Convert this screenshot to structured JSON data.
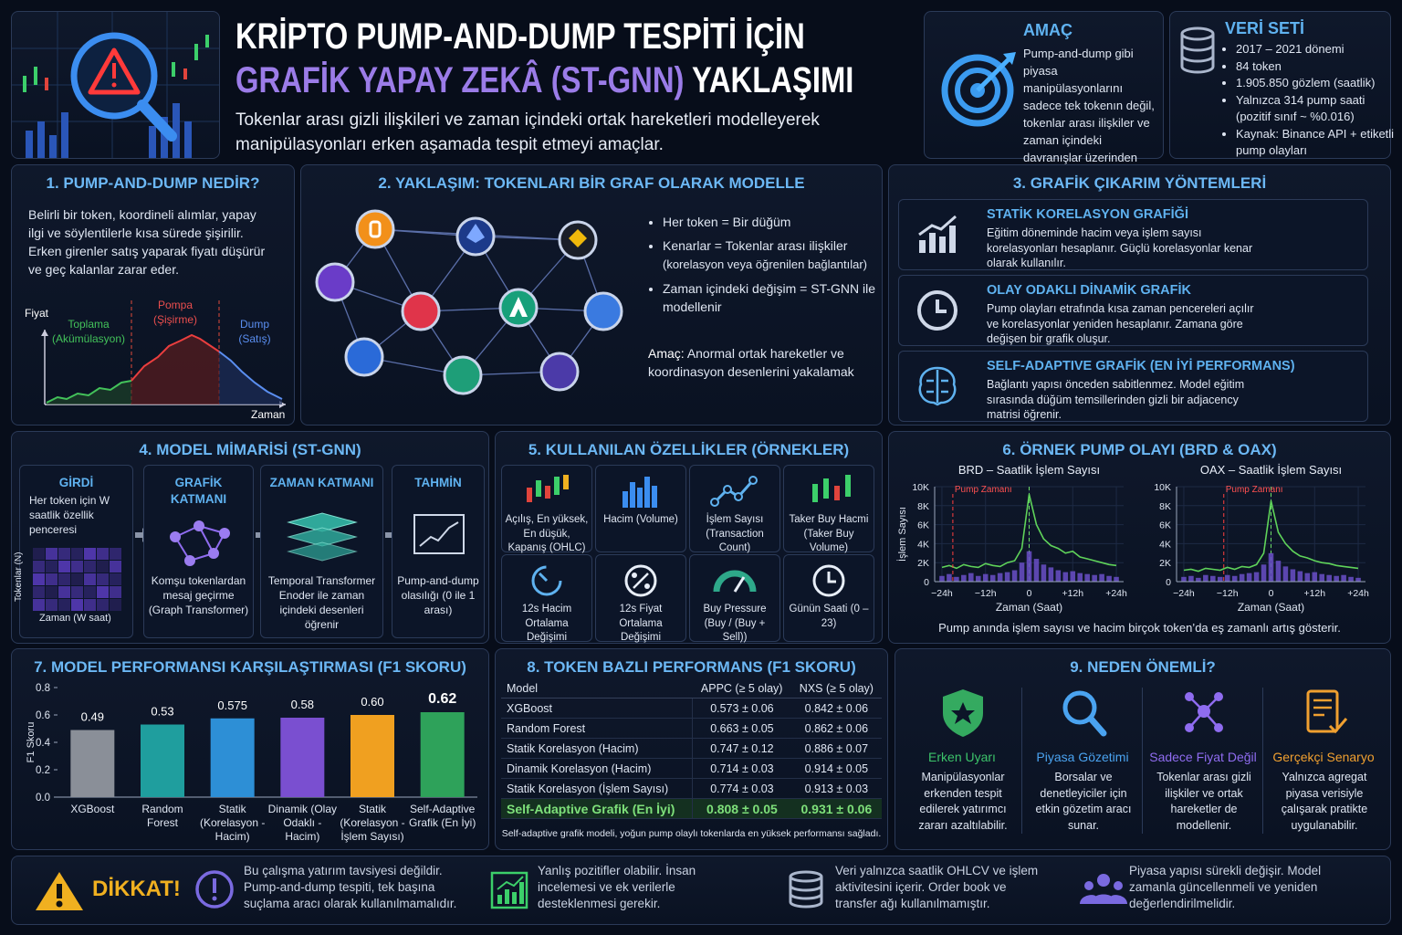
{
  "header": {
    "title_line1": "KRİPTO PUMP-AND-DUMP TESPİTİ İÇİN",
    "title_highlight": "GRAFİK YAPAY ZEKÂ (ST-GNN)",
    "title_rest": "YAKLAŞIMI",
    "subtitle": "Tokenlar arası gizli ilişkileri ve zaman içindeki ortak hareketleri modelleyerek manipülasyonları erken aşamada tespit etmeyi amaçlar."
  },
  "purpose": {
    "title": "AMAÇ",
    "text": "Pump-and-dump gibi piyasa manipülasyonlarını sadece tek tokenın değil, tokenlar arası ilişkiler ve zaman içindeki davranışlar üzerinden tespit etmek."
  },
  "dataset": {
    "title": "VERİ SETİ",
    "items": [
      "2017 – 2021 dönemi",
      "84 token",
      "1.905.850 gözlem (saatlik)",
      "Yalnızca 314 pump saati (pozitif sınıf ~ %0.016)",
      "Kaynak: Binance API + etiketli pump olayları"
    ]
  },
  "section1": {
    "title": "1. PUMP-AND-DUMP NEDİR?",
    "text": "Belirli bir token, koordineli alımlar, yapay ilgi ve söylentilerle kısa sürede şişirilir. Erken girenler satış yaparak fiyatı düşürür ve geç kalanlar zarar eder.",
    "y_label": "Fiyat",
    "x_label": "Zaman",
    "phases": [
      {
        "name": "Toplama",
        "sub": "(Akümülasyon)"
      },
      {
        "name": "Pompa",
        "sub": "(Şişirme)"
      },
      {
        "name": "Dump",
        "sub": "(Satış)"
      }
    ]
  },
  "section2": {
    "title": "2. YAKLAŞIM: TOKENLARI BİR GRAF OLARAK MODELLE",
    "bullets": [
      "Her token = Bir düğüm",
      "Kenarlar = Tokenlar arası ilişkiler",
      "Zaman içindeki değişim = ST-GNN ile modellenir"
    ],
    "bullet_note": "(korelasyon veya öğrenilen bağlantılar)",
    "goal_label": "Amaç:",
    "goal_text": "Anormal ortak hareketler ve koordinasyon desenlerini yakalamak"
  },
  "section3": {
    "title": "3. GRAFİK ÇIKARIM YÖNTEMLERİ",
    "methods": [
      {
        "title": "STATİK KORELASYON GRAFİĞİ",
        "text": "Eğitim döneminde hacim veya işlem sayısı korelasyonları hesaplanır. Güçlü korelasyonlar kenar olarak kullanılır."
      },
      {
        "title": "OLAY ODAKLI DİNAMİK GRAFİK",
        "text": "Pump olayları etrafında kısa zaman pencereleri açılır ve korelasyonlar yeniden hesaplanır. Zamana göre değişen bir grafik oluşur."
      },
      {
        "title": "SELF-ADAPTIVE GRAFİK (EN İYİ PERFORMANS)",
        "text": "Bağlantı yapısı önceden sabitlenmez. Model eğitim sırasında düğüm temsillerinden gizli bir adjacency matrisi öğrenir."
      }
    ]
  },
  "section4": {
    "title": "4. MODEL MİMARİSİ (ST-GNN)",
    "steps": [
      {
        "title": "GİRDİ",
        "text": "Her token için W saatlik özellik penceresi"
      },
      {
        "title": "GRAFİK KATMANI",
        "text": "Komşu tokenlardan mesaj geçirme (Graph Transformer)"
      },
      {
        "title": "ZAMAN KATMANI",
        "text": "Temporal Transformer Enoder ile zaman içindeki desenleri öğrenir"
      },
      {
        "title": "TAHMİN",
        "text": "Pump-and-dump olasılığı (0 ile 1 arası)"
      }
    ],
    "heatmap_y": "Tokenlar (N)",
    "heatmap_x": "Zaman (W saat)"
  },
  "section5": {
    "title": "5. KULLANILAN ÖZELLİKLER (ÖRNEKLER)",
    "features": [
      "Açılış, En yüksek, En düşük, Kapanış (OHLC)",
      "Hacim (Volume)",
      "İşlem Sayısı (Transaction Count)",
      "Taker Buy Hacmi (Taker Buy Volume)",
      "12s Hacim Ortalama Değişimi",
      "12s Fiyat Ortalama Değişimi",
      "Buy Pressure (Buy / (Buy + Sell))",
      "Günün Saati (0 – 23)"
    ]
  },
  "section6": {
    "title": "6. ÖRNEK PUMP OLAYI (BRD & OAX)",
    "caption": "Pump anında işlem sayısı ve hacim birçok token’da eş zamanlı artış gösterir."
  },
  "section8": {
    "title": "8. TOKEN BAZLI PERFORMANS (F1 SKORU)",
    "header": [
      "Model",
      "APPC (≥ 5 olay)",
      "NXS (≥ 5 olay)"
    ],
    "rows": [
      [
        "XGBoost",
        "0.573 ± 0.06",
        "0.842 ± 0.06"
      ],
      [
        "Random Forest",
        "0.663 ± 0.05",
        "0.862 ± 0.06"
      ],
      [
        "Statik Korelasyon (Hacim)",
        "0.747 ± 0.12",
        "0.886 ± 0.07"
      ],
      [
        "Dinamik Korelasyon (Hacim)",
        "0.714 ± 0.03",
        "0.914 ± 0.05"
      ],
      [
        "Statik Korelasyon (İşlem Sayısı)",
        "0.774 ± 0.03",
        "0.913 ± 0.03"
      ],
      [
        "Self-Adaptive Grafik (En İyi)",
        "0.808 ± 0.05",
        "0.931 ± 0.06"
      ]
    ],
    "caption": "Self-adaptive grafik modeli, yoğun pump olaylı tokenlarda en yüksek performansı sağladı."
  },
  "section9": {
    "title": "9. NEDEN ÖNEMLİ?",
    "items": [
      {
        "title": "Erken Uyarı",
        "text": "Manipülasyonlar erkenden tespit edilerek yatırımcı zararı azaltılabilir.",
        "color": "#3cc46a"
      },
      {
        "title": "Piyasa Gözetimi",
        "text": "Borsalar ve denetleyiciler için etkin gözetim aracı sunar.",
        "color": "#4aa3f0"
      },
      {
        "title": "Sadece Fiyat Değil",
        "text": "Tokenlar arası gizli ilişkiler ve ortak hareketler de modellenir.",
        "color": "#8f6cf0"
      },
      {
        "title": "Gerçekçi Senaryo",
        "text": "Yalnızca agregat piyasa verisiyle çalışarak pratikte uygulanabilir.",
        "color": "#f0a030"
      }
    ]
  },
  "footer": {
    "warning": "DİKKAT!",
    "notes": [
      "Bu çalışma yatırım tavsiyesi değildir. Pump-and-dump tespiti, tek başına suçlama aracı olarak kullanılmamalıdır.",
      "Yanlış pozitifler olabilir. İnsan incelemesi ve ek verilerle desteklenmesi gerekir.",
      "Veri yalnızca saatlik OHLCV ve işlem aktivitesini içerir. Order book ve transfer ağı kullanılmamıştır.",
      "Piyasa yapısı sürekli değişir. Model zamanla güncellenmeli ve yeniden değerlendirilmelidir."
    ]
  },
  "chart_data": [
    {
      "type": "line",
      "title": "BRD – Saatlik İşlem Sayısı",
      "y_label": "İşlem Sayısı",
      "x_label": "Zaman (Saat)",
      "grid": true,
      "x": [
        -24,
        -22,
        -20,
        -18,
        -16,
        -14,
        -12,
        -10,
        -8,
        -6,
        -4,
        -2,
        0,
        2,
        4,
        6,
        8,
        10,
        12,
        14,
        16,
        18,
        20,
        22,
        24
      ],
      "series": [
        {
          "color": "#5fd35a",
          "values": [
            1500,
            1700,
            1400,
            1800,
            1600,
            1500,
            1900,
            1700,
            1600,
            2000,
            2200,
            3500,
            9200,
            6000,
            4500,
            3800,
            3500,
            3000,
            3200,
            2600,
            2400,
            2200,
            2000,
            1800,
            1700
          ]
        },
        {
          "type": "bar",
          "color": "#6a4fc8",
          "values": [
            600,
            800,
            500,
            700,
            900,
            600,
            800,
            700,
            900,
            1000,
            1200,
            2000,
            3200,
            2400,
            1800,
            1500,
            1200,
            1000,
            1100,
            900,
            800,
            700,
            800,
            600,
            500
          ]
        }
      ],
      "annotations": [
        {
          "text": "Pump Zamanı",
          "x": -21
        }
      ],
      "xlim": [
        -26,
        26
      ],
      "ylim": [
        0,
        10000
      ],
      "xticks": [
        {
          "value": -24,
          "label": "−24h"
        },
        {
          "value": -12,
          "label": "−12h"
        },
        0,
        {
          "value": 12,
          "label": "+12h"
        },
        {
          "value": 24,
          "label": "+24h"
        }
      ],
      "yticks": [
        0,
        {
          "value": 2000,
          "label": "2K"
        },
        {
          "value": 4000,
          "label": "4K"
        },
        {
          "value": 6000,
          "label": "6K"
        },
        {
          "value": 8000,
          "label": "8K"
        },
        {
          "value": 10000,
          "label": "10K"
        }
      ]
    },
    {
      "type": "line",
      "title": "OAX – Saatlik İşlem Sayısı",
      "x_label": "Zaman (Saat)",
      "grid": true,
      "x": [
        -24,
        -22,
        -20,
        -18,
        -16,
        -14,
        -12,
        -10,
        -8,
        -6,
        -4,
        -2,
        0,
        2,
        4,
        6,
        8,
        10,
        12,
        14,
        16,
        18,
        20,
        22,
        24
      ],
      "series": [
        {
          "color": "#5fd35a",
          "values": [
            1200,
            1300,
            1100,
            1400,
            1300,
            1200,
            1500,
            1300,
            1600,
            1500,
            1800,
            3000,
            8500,
            5200,
            4000,
            3200,
            2700,
            2500,
            2200,
            2000,
            1900,
            1700,
            1600,
            1500,
            1400
          ]
        },
        {
          "type": "bar",
          "color": "#6a4fc8",
          "values": [
            500,
            600,
            400,
            700,
            600,
            500,
            700,
            600,
            800,
            900,
            1000,
            1800,
            3000,
            2200,
            1600,
            1300,
            1100,
            900,
            1000,
            800,
            700,
            600,
            700,
            500,
            400
          ]
        }
      ],
      "annotations": [
        {
          "text": "Pump Zamanı",
          "x": -13
        }
      ],
      "xlim": [
        -26,
        26
      ],
      "ylim": [
        0,
        10000
      ],
      "xticks": [
        {
          "value": -24,
          "label": "−24h"
        },
        {
          "value": -12,
          "label": "−12h"
        },
        0,
        {
          "value": 12,
          "label": "+12h"
        },
        {
          "value": 24,
          "label": "+24h"
        }
      ],
      "yticks": [
        0,
        {
          "value": 2000,
          "label": "2K"
        },
        {
          "value": 4000,
          "label": "4K"
        },
        {
          "value": 6000,
          "label": "6K"
        },
        {
          "value": 8000,
          "label": "8K"
        },
        {
          "value": 10000,
          "label": "10K"
        }
      ]
    },
    {
      "type": "bar",
      "title": "7. MODEL PERFORMANSI KARŞILAŞTIRMASI (F1 SKORU)",
      "y_label": "F1 Skoru",
      "categories": [
        "XGBoost",
        "Random Forest",
        "Statik (Korelasyon - Hacim)",
        "Dinamik (Olay Odaklı - Hacim)",
        "Statik (Korelasyon - İşlem Sayısı)",
        "Self-Adaptive Grafik (En İyi)"
      ],
      "values": [
        0.49,
        0.53,
        0.575,
        0.58,
        0.6,
        0.62
      ],
      "value_labels": [
        "0.49",
        "0.53",
        "0.575",
        "0.58",
        "0.60",
        "0.62"
      ],
      "colors": [
        "#8a8f98",
        "#1f9e9e",
        "#2d8fd6",
        "#7a4fd0",
        "#f0a020",
        "#2ea25a"
      ],
      "ylim": [
        0,
        0.8
      ],
      "yticks": [
        {
          "value": 0,
          "label": "0.0"
        },
        0.2,
        0.4,
        0.6,
        0.8
      ]
    }
  ]
}
